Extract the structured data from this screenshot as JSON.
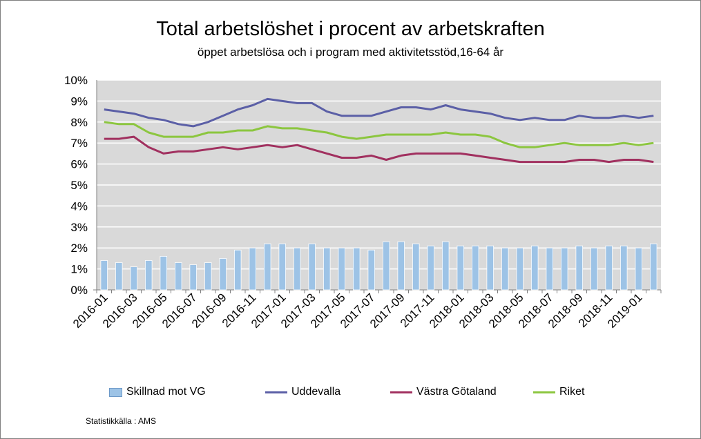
{
  "chart_data": {
    "type": "bar+line",
    "title": "Total arbetslöshet i procent av arbetskraften",
    "subtitle": "öppet arbetslösa och i program med aktivitetsstöd,16-64 år",
    "xlabel": "",
    "ylabel": "",
    "ylim": [
      0,
      10
    ],
    "yticks": [
      "0%",
      "1%",
      "2%",
      "3%",
      "4%",
      "5%",
      "6%",
      "7%",
      "8%",
      "9%",
      "10%"
    ],
    "grid": "horizontal",
    "legend_position": "bottom",
    "x": [
      "2016-01",
      "2016-02",
      "2016-03",
      "2016-04",
      "2016-05",
      "2016-06",
      "2016-07",
      "2016-08",
      "2016-09",
      "2016-10",
      "2016-11",
      "2016-12",
      "2017-01",
      "2017-02",
      "2017-03",
      "2017-04",
      "2017-05",
      "2017-06",
      "2017-07",
      "2017-08",
      "2017-09",
      "2017-10",
      "2017-11",
      "2017-12",
      "2018-01",
      "2018-02",
      "2018-03",
      "2018-04",
      "2018-05",
      "2018-06",
      "2018-07",
      "2018-08",
      "2018-09",
      "2018-10",
      "2018-11",
      "2018-12",
      "2019-01",
      "2019-02"
    ],
    "xtick_labels": [
      "2016-01",
      "2016-03",
      "2016-05",
      "2016-07",
      "2016-09",
      "2016-11",
      "2017-01",
      "2017-03",
      "2017-05",
      "2017-07",
      "2017-09",
      "2017-11",
      "2018-01",
      "2018-03",
      "2018-05",
      "2018-07",
      "2018-09",
      "2018-11",
      "2019-01"
    ],
    "series": [
      {
        "name": "Skillnad mot VG",
        "kind": "bar",
        "color": "#9dc3e6",
        "values": [
          1.4,
          1.3,
          1.1,
          1.4,
          1.6,
          1.3,
          1.2,
          1.3,
          1.5,
          1.9,
          2.0,
          2.2,
          2.2,
          2.0,
          2.2,
          2.0,
          2.0,
          2.0,
          1.9,
          2.3,
          2.3,
          2.2,
          2.1,
          2.3,
          2.1,
          2.1,
          2.1,
          2.0,
          2.0,
          2.1,
          2.0,
          2.0,
          2.1,
          2.0,
          2.1,
          2.1,
          2.0,
          2.2
        ]
      },
      {
        "name": "Uddevalla",
        "kind": "line",
        "color": "#5b5fa6",
        "values": [
          8.6,
          8.5,
          8.4,
          8.2,
          8.1,
          7.9,
          7.8,
          8.0,
          8.3,
          8.6,
          8.8,
          9.1,
          9.0,
          8.9,
          8.9,
          8.5,
          8.3,
          8.3,
          8.3,
          8.5,
          8.7,
          8.7,
          8.6,
          8.8,
          8.6,
          8.5,
          8.4,
          8.2,
          8.1,
          8.2,
          8.1,
          8.1,
          8.3,
          8.2,
          8.2,
          8.3,
          8.2,
          8.3
        ]
      },
      {
        "name": "Västra Götaland",
        "kind": "line",
        "color": "#a1305f",
        "values": [
          7.2,
          7.2,
          7.3,
          6.8,
          6.5,
          6.6,
          6.6,
          6.7,
          6.8,
          6.7,
          6.8,
          6.9,
          6.8,
          6.9,
          6.7,
          6.5,
          6.3,
          6.3,
          6.4,
          6.2,
          6.4,
          6.5,
          6.5,
          6.5,
          6.5,
          6.4,
          6.3,
          6.2,
          6.1,
          6.1,
          6.1,
          6.1,
          6.2,
          6.2,
          6.1,
          6.2,
          6.2,
          6.1
        ]
      },
      {
        "name": "Riket",
        "kind": "line",
        "color": "#8cc63f",
        "values": [
          8.0,
          7.9,
          7.9,
          7.5,
          7.3,
          7.3,
          7.3,
          7.5,
          7.5,
          7.6,
          7.6,
          7.8,
          7.7,
          7.7,
          7.6,
          7.5,
          7.3,
          7.2,
          7.3,
          7.4,
          7.4,
          7.4,
          7.4,
          7.5,
          7.4,
          7.4,
          7.3,
          7.0,
          6.8,
          6.8,
          6.9,
          7.0,
          6.9,
          6.9,
          6.9,
          7.0,
          6.9,
          7.0
        ]
      }
    ],
    "source": "Statistikkälla : AMS"
  }
}
